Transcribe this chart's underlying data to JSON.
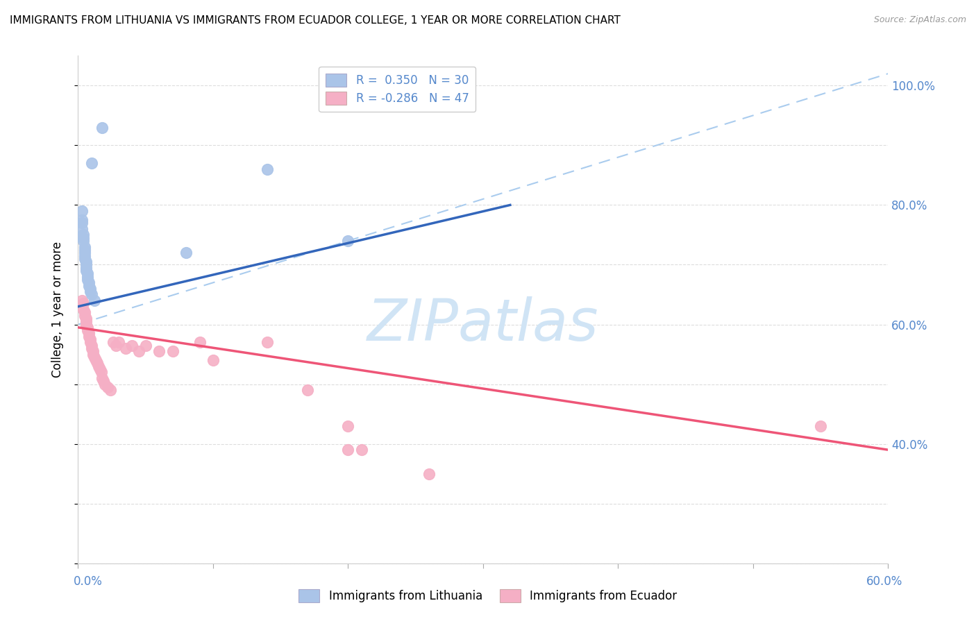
{
  "title": "IMMIGRANTS FROM LITHUANIA VS IMMIGRANTS FROM ECUADOR COLLEGE, 1 YEAR OR MORE CORRELATION CHART",
  "source": "Source: ZipAtlas.com",
  "ylabel": "College, 1 year or more",
  "label_blue": "Immigrants from Lithuania",
  "label_pink": "Immigrants from Ecuador",
  "r_blue": 0.35,
  "n_blue": 30,
  "r_pink": -0.286,
  "n_pink": 47,
  "blue_color": "#aac4e8",
  "pink_color": "#f5afc5",
  "blue_line_color": "#3366bb",
  "pink_line_color": "#ee5577",
  "dashed_line_color": "#aaccee",
  "xlim": [
    0.0,
    0.6
  ],
  "ylim": [
    0.2,
    1.05
  ],
  "blue_points": [
    [
      0.01,
      0.87
    ],
    [
      0.018,
      0.93
    ],
    [
      0.003,
      0.79
    ],
    [
      0.003,
      0.775
    ],
    [
      0.003,
      0.77
    ],
    [
      0.003,
      0.76
    ],
    [
      0.004,
      0.75
    ],
    [
      0.004,
      0.745
    ],
    [
      0.004,
      0.74
    ],
    [
      0.005,
      0.73
    ],
    [
      0.005,
      0.725
    ],
    [
      0.005,
      0.72
    ],
    [
      0.005,
      0.715
    ],
    [
      0.005,
      0.71
    ],
    [
      0.006,
      0.705
    ],
    [
      0.006,
      0.7
    ],
    [
      0.006,
      0.695
    ],
    [
      0.006,
      0.69
    ],
    [
      0.007,
      0.685
    ],
    [
      0.007,
      0.68
    ],
    [
      0.007,
      0.675
    ],
    [
      0.008,
      0.67
    ],
    [
      0.008,
      0.665
    ],
    [
      0.009,
      0.66
    ],
    [
      0.009,
      0.655
    ],
    [
      0.01,
      0.65
    ],
    [
      0.012,
      0.64
    ],
    [
      0.08,
      0.72
    ],
    [
      0.14,
      0.86
    ],
    [
      0.2,
      0.74
    ]
  ],
  "pink_points": [
    [
      0.003,
      0.64
    ],
    [
      0.004,
      0.635
    ],
    [
      0.004,
      0.625
    ],
    [
      0.005,
      0.62
    ],
    [
      0.005,
      0.615
    ],
    [
      0.006,
      0.61
    ],
    [
      0.006,
      0.605
    ],
    [
      0.006,
      0.6
    ],
    [
      0.007,
      0.595
    ],
    [
      0.007,
      0.59
    ],
    [
      0.008,
      0.585
    ],
    [
      0.008,
      0.58
    ],
    [
      0.009,
      0.575
    ],
    [
      0.009,
      0.57
    ],
    [
      0.01,
      0.565
    ],
    [
      0.01,
      0.56
    ],
    [
      0.011,
      0.555
    ],
    [
      0.011,
      0.55
    ],
    [
      0.012,
      0.545
    ],
    [
      0.013,
      0.54
    ],
    [
      0.014,
      0.535
    ],
    [
      0.015,
      0.53
    ],
    [
      0.016,
      0.525
    ],
    [
      0.017,
      0.52
    ],
    [
      0.018,
      0.51
    ],
    [
      0.019,
      0.505
    ],
    [
      0.02,
      0.5
    ],
    [
      0.022,
      0.495
    ],
    [
      0.024,
      0.49
    ],
    [
      0.026,
      0.57
    ],
    [
      0.028,
      0.565
    ],
    [
      0.03,
      0.57
    ],
    [
      0.035,
      0.56
    ],
    [
      0.04,
      0.565
    ],
    [
      0.045,
      0.555
    ],
    [
      0.05,
      0.565
    ],
    [
      0.06,
      0.555
    ],
    [
      0.07,
      0.555
    ],
    [
      0.09,
      0.57
    ],
    [
      0.1,
      0.54
    ],
    [
      0.14,
      0.57
    ],
    [
      0.17,
      0.49
    ],
    [
      0.2,
      0.39
    ],
    [
      0.2,
      0.43
    ],
    [
      0.21,
      0.39
    ],
    [
      0.26,
      0.35
    ],
    [
      0.55,
      0.43
    ]
  ],
  "watermark_text": "ZIPatlas",
  "watermark_color": "#d0e4f5",
  "grid_color": "#dddddd",
  "right_axis_color": "#5588cc"
}
